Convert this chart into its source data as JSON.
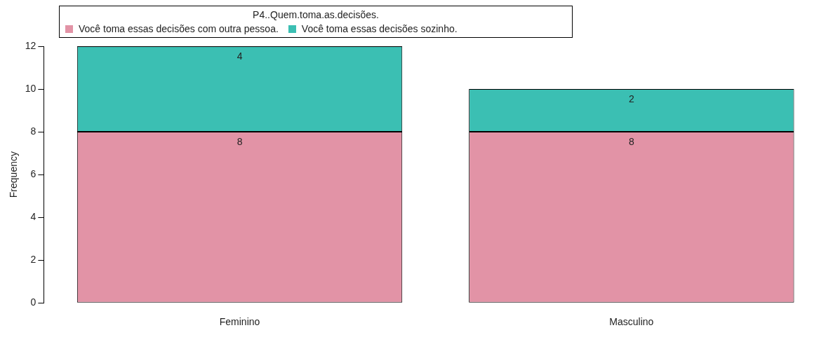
{
  "chart_data": {
    "type": "bar",
    "legend_title": "P4..Quem.toma.as.decisões.",
    "ylabel": "Frequency",
    "categories": [
      "Feminino",
      "Masculino"
    ],
    "series": [
      {
        "name": "Você toma essas decisões com outra pessoa.",
        "color": "#e293a6",
        "values": [
          8,
          8
        ]
      },
      {
        "name": "Você toma essas decisões sozinho.",
        "color": "#3bbfb3",
        "values": [
          4,
          2
        ]
      }
    ],
    "stacked": true,
    "ylim": [
      0,
      12
    ],
    "yticks": [
      0,
      2,
      4,
      6,
      8,
      10,
      12
    ],
    "grid": false,
    "legend": "top left",
    "data_labels": true
  }
}
